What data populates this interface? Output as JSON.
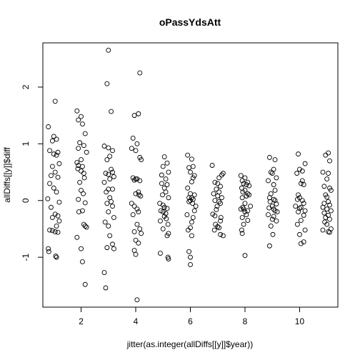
{
  "chart_data": {
    "type": "scatter",
    "title": "oPassYdsAtt",
    "xlabel": "jitter(as.integer(allDiffs[[y]]$year))",
    "ylabel": "allDiffs[[y]]$diff",
    "xlim": [
      0.6,
      11.4
    ],
    "ylim": [
      -1.88,
      2.78
    ],
    "x_ticks": [
      2,
      4,
      6,
      8,
      10
    ],
    "y_ticks": [
      -1,
      0,
      1,
      2
    ],
    "grid": false,
    "legend": "none",
    "marker": "open-circle",
    "series": [
      {
        "points": [
          [
            0.8,
            1.3
          ],
          [
            1.05,
            1.75
          ],
          [
            1.0,
            1.13
          ],
          [
            0.95,
            1.05
          ],
          [
            1.1,
            1.08
          ],
          [
            0.85,
            0.88
          ],
          [
            1.15,
            0.85
          ],
          [
            1.0,
            0.82
          ],
          [
            1.1,
            0.8
          ],
          [
            1.2,
            0.65
          ],
          [
            0.95,
            0.6
          ],
          [
            1.05,
            0.5
          ],
          [
            0.9,
            0.44
          ],
          [
            1.15,
            0.41
          ],
          [
            0.85,
            0.3
          ],
          [
            1.0,
            0.22
          ],
          [
            1.1,
            0.15
          ],
          [
            0.78,
            0.03
          ],
          [
            1.2,
            -0.03
          ],
          [
            0.9,
            -0.12
          ],
          [
            1.05,
            -0.24
          ],
          [
            1.15,
            -0.27
          ],
          [
            0.95,
            -0.3
          ],
          [
            1.2,
            -0.36
          ],
          [
            1.1,
            -0.45
          ],
          [
            0.85,
            -0.52
          ],
          [
            0.95,
            -0.53
          ],
          [
            1.05,
            -0.55
          ],
          [
            1.15,
            -0.56
          ],
          [
            0.8,
            -0.85
          ],
          [
            0.82,
            -0.9
          ],
          [
            1.07,
            -0.98
          ],
          [
            1.1,
            -1.0
          ],
          [
            1.85,
            1.58
          ],
          [
            2.0,
            1.48
          ],
          [
            1.9,
            1.42
          ],
          [
            2.05,
            1.35
          ],
          [
            2.15,
            1.18
          ],
          [
            1.95,
            1.02
          ],
          [
            2.1,
            0.97
          ],
          [
            1.9,
            0.92
          ],
          [
            2.2,
            0.85
          ],
          [
            2.0,
            0.72
          ],
          [
            1.85,
            0.67
          ],
          [
            1.9,
            0.62
          ],
          [
            2.05,
            0.6
          ],
          [
            1.88,
            0.56
          ],
          [
            2.0,
            0.52
          ],
          [
            2.1,
            0.48
          ],
          [
            2.12,
            0.4
          ],
          [
            1.95,
            0.32
          ],
          [
            2.0,
            0.18
          ],
          [
            2.08,
            0.12
          ],
          [
            1.9,
            0.02
          ],
          [
            2.15,
            -0.04
          ],
          [
            2.05,
            -0.18
          ],
          [
            1.92,
            -0.2
          ],
          [
            2.1,
            -0.42
          ],
          [
            2.15,
            -0.45
          ],
          [
            2.2,
            -0.47
          ],
          [
            1.85,
            -0.65
          ],
          [
            2.0,
            -0.85
          ],
          [
            2.05,
            -1.08
          ],
          [
            2.15,
            -1.48
          ],
          [
            3.0,
            2.65
          ],
          [
            2.95,
            2.06
          ],
          [
            3.1,
            1.57
          ],
          [
            2.85,
            0.96
          ],
          [
            3.0,
            0.93
          ],
          [
            3.15,
            0.88
          ],
          [
            3.05,
            0.78
          ],
          [
            2.95,
            0.72
          ],
          [
            3.1,
            0.55
          ],
          [
            3.15,
            0.5
          ],
          [
            2.9,
            0.48
          ],
          [
            3.0,
            0.46
          ],
          [
            3.2,
            0.42
          ],
          [
            3.05,
            0.38
          ],
          [
            2.85,
            0.32
          ],
          [
            3.0,
            0.2
          ],
          [
            3.15,
            0.2
          ],
          [
            2.92,
            0.15
          ],
          [
            3.05,
            0.05
          ],
          [
            3.1,
            -0.02
          ],
          [
            2.95,
            -0.05
          ],
          [
            3.15,
            -0.1
          ],
          [
            3.0,
            -0.2
          ],
          [
            3.2,
            -0.3
          ],
          [
            2.88,
            -0.38
          ],
          [
            3.0,
            -0.45
          ],
          [
            3.05,
            -0.62
          ],
          [
            3.15,
            -0.77
          ],
          [
            2.95,
            -0.83
          ],
          [
            3.2,
            -0.85
          ],
          [
            2.85,
            -1.27
          ],
          [
            2.9,
            -1.54
          ],
          [
            4.15,
            2.25
          ],
          [
            3.95,
            1.5
          ],
          [
            4.1,
            1.53
          ],
          [
            3.9,
            1.1
          ],
          [
            4.05,
            1.0
          ],
          [
            3.85,
            0.92
          ],
          [
            4.0,
            0.88
          ],
          [
            4.15,
            0.76
          ],
          [
            4.2,
            0.72
          ],
          [
            3.9,
            0.4
          ],
          [
            4.0,
            0.38
          ],
          [
            4.05,
            0.38
          ],
          [
            3.95,
            0.36
          ],
          [
            4.15,
            0.35
          ],
          [
            4.1,
            0.15
          ],
          [
            4.0,
            0.12
          ],
          [
            4.12,
            0.1
          ],
          [
            4.18,
            0.08
          ],
          [
            3.85,
            -0.05
          ],
          [
            3.95,
            -0.1
          ],
          [
            4.05,
            -0.15
          ],
          [
            4.1,
            -0.2
          ],
          [
            3.9,
            -0.25
          ],
          [
            4.05,
            -0.42
          ],
          [
            4.15,
            -0.5
          ],
          [
            3.95,
            -0.55
          ],
          [
            4.2,
            -0.58
          ],
          [
            4.0,
            -0.7
          ],
          [
            4.1,
            -0.75
          ],
          [
            3.95,
            -0.88
          ],
          [
            4.0,
            -0.95
          ],
          [
            4.05,
            -1.75
          ]
        ]
      },
      {
        "points": [
          [
            5.05,
            0.77
          ],
          [
            5.15,
            0.66
          ],
          [
            5.0,
            0.6
          ],
          [
            5.2,
            0.5
          ],
          [
            4.95,
            0.45
          ],
          [
            5.1,
            0.38
          ],
          [
            4.95,
            0.3
          ],
          [
            5.15,
            0.28
          ],
          [
            5.05,
            0.22
          ],
          [
            5.1,
            0.15
          ],
          [
            4.98,
            0.1
          ],
          [
            5.2,
            0.05
          ],
          [
            4.88,
            -0.05
          ],
          [
            5.0,
            -0.08
          ],
          [
            5.05,
            -0.12
          ],
          [
            5.15,
            -0.14
          ],
          [
            4.92,
            -0.18
          ],
          [
            5.0,
            -0.2
          ],
          [
            5.1,
            -0.23
          ],
          [
            5.05,
            -0.28
          ],
          [
            5.12,
            -0.32
          ],
          [
            4.9,
            -0.36
          ],
          [
            5.18,
            -0.42
          ],
          [
            5.0,
            -0.5
          ],
          [
            5.2,
            -0.58
          ],
          [
            5.15,
            -0.62
          ],
          [
            4.9,
            -0.93
          ],
          [
            5.18,
            -1.0
          ],
          [
            5.2,
            -1.03
          ],
          [
            5.9,
            0.8
          ],
          [
            6.05,
            0.73
          ],
          [
            6.1,
            0.6
          ],
          [
            5.95,
            0.58
          ],
          [
            6.0,
            0.5
          ],
          [
            6.15,
            0.44
          ],
          [
            6.1,
            0.4
          ],
          [
            6.05,
            0.33
          ],
          [
            5.9,
            0.22
          ],
          [
            6.0,
            0.12
          ],
          [
            6.15,
            0.1
          ],
          [
            5.95,
            0.05
          ],
          [
            6.05,
            0.05
          ],
          [
            6.1,
            0.02
          ],
          [
            6.0,
            0.0
          ],
          [
            5.95,
            -0.02
          ],
          [
            6.08,
            -0.05
          ],
          [
            6.2,
            -0.1
          ],
          [
            6.15,
            -0.18
          ],
          [
            5.88,
            -0.25
          ],
          [
            6.1,
            -0.3
          ],
          [
            6.05,
            -0.38
          ],
          [
            6.0,
            -0.48
          ],
          [
            5.92,
            -0.52
          ],
          [
            6.05,
            -0.62
          ],
          [
            5.95,
            -0.9
          ],
          [
            6.0,
            -1.0
          ],
          [
            6.0,
            -1.13
          ],
          [
            6.8,
            0.62
          ],
          [
            7.15,
            0.45
          ],
          [
            7.2,
            0.48
          ],
          [
            7.05,
            0.4
          ],
          [
            6.9,
            0.32
          ],
          [
            7.0,
            0.3
          ],
          [
            7.1,
            0.25
          ],
          [
            6.95,
            0.2
          ],
          [
            7.05,
            0.15
          ],
          [
            6.85,
            0.12
          ],
          [
            7.0,
            0.08
          ],
          [
            7.15,
            0.05
          ],
          [
            6.9,
            0.0
          ],
          [
            7.05,
            -0.02
          ],
          [
            7.1,
            -0.05
          ],
          [
            6.98,
            -0.1
          ],
          [
            6.95,
            -0.16
          ],
          [
            6.82,
            -0.24
          ],
          [
            6.9,
            -0.27
          ],
          [
            7.12,
            -0.3
          ],
          [
            7.1,
            -0.36
          ],
          [
            6.92,
            -0.42
          ],
          [
            7.0,
            -0.46
          ],
          [
            7.05,
            -0.48
          ],
          [
            6.88,
            -0.52
          ],
          [
            7.1,
            -0.6
          ],
          [
            7.2,
            -0.62
          ],
          [
            7.85,
            0.44
          ],
          [
            8.0,
            0.4
          ],
          [
            7.9,
            0.35
          ],
          [
            8.1,
            0.32
          ],
          [
            7.95,
            0.3
          ],
          [
            8.05,
            0.28
          ],
          [
            8.15,
            0.26
          ],
          [
            7.88,
            0.22
          ],
          [
            8.0,
            0.18
          ],
          [
            7.92,
            0.15
          ],
          [
            8.1,
            0.12
          ],
          [
            8.15,
            0.1
          ],
          [
            8.05,
            0.08
          ],
          [
            7.9,
            0.05
          ],
          [
            8.0,
            -0.05
          ],
          [
            8.2,
            -0.1
          ],
          [
            7.92,
            -0.12
          ],
          [
            7.85,
            -0.15
          ],
          [
            7.95,
            -0.15
          ],
          [
            8.1,
            -0.18
          ],
          [
            8.0,
            -0.2
          ],
          [
            8.05,
            -0.25
          ],
          [
            7.9,
            -0.3
          ],
          [
            8.1,
            -0.35
          ],
          [
            7.95,
            -0.42
          ],
          [
            7.88,
            -0.52
          ],
          [
            7.9,
            -0.58
          ],
          [
            8.0,
            -0.97
          ]
        ]
      },
      {
        "points": [
          [
            8.9,
            0.76
          ],
          [
            9.1,
            0.72
          ],
          [
            9.05,
            0.55
          ],
          [
            8.95,
            0.5
          ],
          [
            9.0,
            0.48
          ],
          [
            9.15,
            0.4
          ],
          [
            8.85,
            0.35
          ],
          [
            9.05,
            0.28
          ],
          [
            9.1,
            0.18
          ],
          [
            8.95,
            0.12
          ],
          [
            8.9,
            0.05
          ],
          [
            9.05,
            0.02
          ],
          [
            9.1,
            0.0
          ],
          [
            8.92,
            -0.02
          ],
          [
            9.15,
            -0.06
          ],
          [
            9.0,
            -0.1
          ],
          [
            8.88,
            -0.13
          ],
          [
            9.05,
            -0.15
          ],
          [
            9.1,
            -0.18
          ],
          [
            9.18,
            -0.2
          ],
          [
            8.85,
            -0.25
          ],
          [
            9.05,
            -0.28
          ],
          [
            9.0,
            -0.33
          ],
          [
            9.15,
            -0.36
          ],
          [
            8.95,
            -0.45
          ],
          [
            9.02,
            -0.6
          ],
          [
            8.9,
            -0.8
          ],
          [
            9.95,
            0.82
          ],
          [
            10.2,
            0.65
          ],
          [
            10.0,
            0.55
          ],
          [
            10.1,
            0.52
          ],
          [
            9.9,
            0.48
          ],
          [
            10.1,
            0.35
          ],
          [
            10.05,
            0.3
          ],
          [
            10.15,
            0.28
          ],
          [
            9.95,
            0.1
          ],
          [
            10.0,
            0.05
          ],
          [
            9.92,
            0.02
          ],
          [
            10.1,
            0.0
          ],
          [
            10.15,
            -0.05
          ],
          [
            9.85,
            -0.1
          ],
          [
            10.05,
            -0.12
          ],
          [
            10.0,
            -0.14
          ],
          [
            10.2,
            -0.18
          ],
          [
            9.95,
            -0.2
          ],
          [
            10.15,
            -0.26
          ],
          [
            10.05,
            -0.35
          ],
          [
            9.92,
            -0.42
          ],
          [
            10.2,
            -0.52
          ],
          [
            10.0,
            -0.6
          ],
          [
            10.05,
            -0.76
          ],
          [
            10.15,
            -0.73
          ],
          [
            11.05,
            0.84
          ],
          [
            10.95,
            0.8
          ],
          [
            11.1,
            0.7
          ],
          [
            11.05,
            0.48
          ],
          [
            10.85,
            0.5
          ],
          [
            11.0,
            0.38
          ],
          [
            10.9,
            0.25
          ],
          [
            11.1,
            0.22
          ],
          [
            11.15,
            0.18
          ],
          [
            10.95,
            0.1
          ],
          [
            11.0,
            0.06
          ],
          [
            11.05,
            -0.02
          ],
          [
            10.9,
            -0.05
          ],
          [
            11.1,
            -0.08
          ],
          [
            10.85,
            -0.12
          ],
          [
            11.0,
            -0.15
          ],
          [
            11.15,
            -0.18
          ],
          [
            10.9,
            -0.22
          ],
          [
            11.05,
            -0.26
          ],
          [
            10.95,
            -0.3
          ],
          [
            11.1,
            -0.33
          ],
          [
            10.92,
            -0.38
          ],
          [
            11.0,
            -0.42
          ],
          [
            11.15,
            -0.5
          ],
          [
            10.85,
            -0.52
          ],
          [
            11.05,
            -0.55
          ],
          [
            11.1,
            -0.56
          ]
        ]
      }
    ]
  }
}
